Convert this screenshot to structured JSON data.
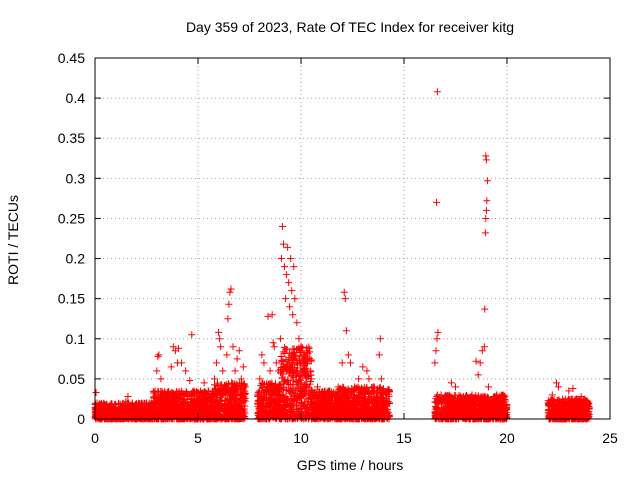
{
  "chart_data": {
    "type": "scatter",
    "title": "Day 359 of 2023, Rate Of TEC Index for receiver kitg",
    "xlabel": "GPS time / hours",
    "ylabel": "ROTI / TECUs",
    "xlim": [
      0,
      25
    ],
    "ylim": [
      0,
      0.45
    ],
    "xticks": [
      0,
      5,
      10,
      15,
      20,
      25
    ],
    "xtick_labels": [
      "0",
      "5",
      "10",
      "15",
      "20",
      "25"
    ],
    "yticks": [
      0,
      0.05,
      0.1,
      0.15,
      0.2,
      0.25,
      0.3,
      0.35,
      0.4,
      0.45
    ],
    "ytick_labels": [
      "0",
      "0.05",
      "0.1",
      "0.15",
      "0.2",
      "0.25",
      "0.3",
      "0.35",
      "0.4",
      "0.45"
    ],
    "grid": true,
    "marker": "+",
    "marker_color": "#ff0000",
    "series": [
      {
        "name": "ROTI",
        "points": [
          [
            0.05,
            0.033
          ],
          [
            0.1,
            0.02
          ],
          [
            0.3,
            0.015
          ],
          [
            0.6,
            0.012
          ],
          [
            1.0,
            0.018
          ],
          [
            1.5,
            0.022
          ],
          [
            1.6,
            0.028
          ],
          [
            2.0,
            0.015
          ],
          [
            2.5,
            0.02
          ],
          [
            3.0,
            0.06
          ],
          [
            3.05,
            0.078
          ],
          [
            3.1,
            0.08
          ],
          [
            3.2,
            0.05
          ],
          [
            3.5,
            0.03
          ],
          [
            3.7,
            0.065
          ],
          [
            3.8,
            0.09
          ],
          [
            3.9,
            0.085
          ],
          [
            4.0,
            0.07
          ],
          [
            4.05,
            0.088
          ],
          [
            4.2,
            0.07
          ],
          [
            4.4,
            0.06
          ],
          [
            4.6,
            0.048
          ],
          [
            4.7,
            0.105
          ],
          [
            4.8,
            0.035
          ],
          [
            5.0,
            0.025
          ],
          [
            5.3,
            0.045
          ],
          [
            5.5,
            0.035
          ],
          [
            5.8,
            0.05
          ],
          [
            5.9,
            0.07
          ],
          [
            6.0,
            0.108
          ],
          [
            6.05,
            0.1
          ],
          [
            6.1,
            0.09
          ],
          [
            6.2,
            0.06
          ],
          [
            6.4,
            0.08
          ],
          [
            6.45,
            0.125
          ],
          [
            6.5,
            0.143
          ],
          [
            6.55,
            0.158
          ],
          [
            6.6,
            0.162
          ],
          [
            6.7,
            0.09
          ],
          [
            6.8,
            0.06
          ],
          [
            6.9,
            0.075
          ],
          [
            7.0,
            0.085
          ],
          [
            7.1,
            0.05
          ],
          [
            7.2,
            0.065
          ],
          [
            7.3,
            0.04
          ],
          [
            7.9,
            0.03
          ],
          [
            8.0,
            0.05
          ],
          [
            8.1,
            0.08
          ],
          [
            8.2,
            0.07
          ],
          [
            8.4,
            0.128
          ],
          [
            8.5,
            0.06
          ],
          [
            8.6,
            0.13
          ],
          [
            8.65,
            0.095
          ],
          [
            8.7,
            0.09
          ],
          [
            8.8,
            0.07
          ],
          [
            8.9,
            0.06
          ],
          [
            9.0,
            0.1
          ],
          [
            9.05,
            0.2
          ],
          [
            9.1,
            0.24
          ],
          [
            9.15,
            0.218
          ],
          [
            9.2,
            0.19
          ],
          [
            9.25,
            0.15
          ],
          [
            9.3,
            0.18
          ],
          [
            9.35,
            0.214
          ],
          [
            9.4,
            0.17
          ],
          [
            9.45,
            0.14
          ],
          [
            9.5,
            0.2
          ],
          [
            9.55,
            0.16
          ],
          [
            9.6,
            0.13
          ],
          [
            9.65,
            0.19
          ],
          [
            9.7,
            0.15
          ],
          [
            9.8,
            0.12
          ],
          [
            9.9,
            0.1
          ],
          [
            10.0,
            0.09
          ],
          [
            10.1,
            0.08
          ],
          [
            10.2,
            0.06
          ],
          [
            10.5,
            0.05
          ],
          [
            10.8,
            0.04
          ],
          [
            11.0,
            0.03
          ],
          [
            11.5,
            0.03
          ],
          [
            11.8,
            0.04
          ],
          [
            12.0,
            0.07
          ],
          [
            12.1,
            0.158
          ],
          [
            12.15,
            0.15
          ],
          [
            12.2,
            0.11
          ],
          [
            12.3,
            0.08
          ],
          [
            12.4,
            0.07
          ],
          [
            12.6,
            0.04
          ],
          [
            12.8,
            0.05
          ],
          [
            13.0,
            0.065
          ],
          [
            13.2,
            0.06
          ],
          [
            13.3,
            0.05
          ],
          [
            13.5,
            0.04
          ],
          [
            13.7,
            0.035
          ],
          [
            13.8,
            0.08
          ],
          [
            13.85,
            0.1
          ],
          [
            13.9,
            0.05
          ],
          [
            14.0,
            0.03
          ],
          [
            14.3,
            0.02
          ],
          [
            16.5,
            0.07
          ],
          [
            16.55,
            0.085
          ],
          [
            16.6,
            0.1
          ],
          [
            16.65,
            0.108
          ],
          [
            16.58,
            0.27
          ],
          [
            16.62,
            0.408
          ],
          [
            16.8,
            0.03
          ],
          [
            17.0,
            0.025
          ],
          [
            17.3,
            0.045
          ],
          [
            17.5,
            0.04
          ],
          [
            17.6,
            0.02
          ],
          [
            18.0,
            0.025
          ],
          [
            18.3,
            0.03
          ],
          [
            18.5,
            0.072
          ],
          [
            18.6,
            0.055
          ],
          [
            18.7,
            0.07
          ],
          [
            18.8,
            0.085
          ],
          [
            18.9,
            0.09
          ],
          [
            18.92,
            0.137
          ],
          [
            18.95,
            0.232
          ],
          [
            18.97,
            0.25
          ],
          [
            19.0,
            0.26
          ],
          [
            19.02,
            0.272
          ],
          [
            19.05,
            0.297
          ],
          [
            19.0,
            0.323
          ],
          [
            18.97,
            0.328
          ],
          [
            19.1,
            0.04
          ],
          [
            19.5,
            0.03
          ],
          [
            19.8,
            0.02
          ],
          [
            22.0,
            0.02
          ],
          [
            22.2,
            0.03
          ],
          [
            22.4,
            0.045
          ],
          [
            22.5,
            0.04
          ],
          [
            22.7,
            0.025
          ],
          [
            23.0,
            0.035
          ],
          [
            23.2,
            0.038
          ],
          [
            23.4,
            0.025
          ],
          [
            23.6,
            0.028
          ],
          [
            23.8,
            0.02
          ],
          [
            24.0,
            0.015
          ]
        ]
      }
    ],
    "dense_bands": [
      {
        "x_range": [
          0.0,
          2.8
        ],
        "y_range": [
          0.0,
          0.02
        ]
      },
      {
        "x_range": [
          2.8,
          5.8
        ],
        "y_range": [
          0.0,
          0.035
        ]
      },
      {
        "x_range": [
          5.8,
          7.3
        ],
        "y_range": [
          0.0,
          0.045
        ]
      },
      {
        "x_range": [
          7.9,
          9.0
        ],
        "y_range": [
          0.0,
          0.045
        ]
      },
      {
        "x_range": [
          9.0,
          10.5
        ],
        "y_range": [
          0.0,
          0.09
        ]
      },
      {
        "x_range": [
          10.5,
          11.8
        ],
        "y_range": [
          0.0,
          0.035
        ]
      },
      {
        "x_range": [
          11.8,
          14.3
        ],
        "y_range": [
          0.0,
          0.04
        ]
      },
      {
        "x_range": [
          16.5,
          20.0
        ],
        "y_range": [
          0.0,
          0.03
        ]
      },
      {
        "x_range": [
          22.0,
          24.0
        ],
        "y_range": [
          0.0,
          0.025
        ]
      }
    ]
  }
}
